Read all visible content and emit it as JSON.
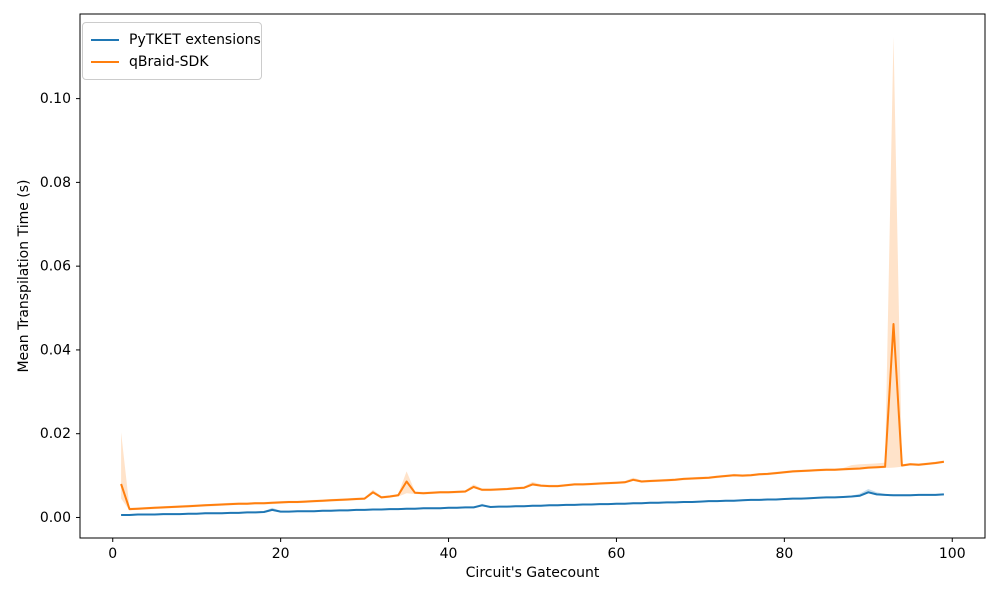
{
  "window": {
    "background": "#ffffff"
  },
  "chart_data": {
    "type": "line",
    "title": "",
    "xlabel": "Circuit's Gatecount",
    "ylabel": "Mean Transpilation Time (s)",
    "grid": false,
    "legend_position": "upper-left",
    "xlim": [
      -3.9,
      103.9
    ],
    "ylim": [
      -0.0049,
      0.1202
    ],
    "xticks": {
      "values": [
        0,
        20,
        40,
        60,
        80,
        100
      ],
      "labels": [
        "0",
        "20",
        "40",
        "60",
        "80",
        "100"
      ]
    },
    "yticks": {
      "values": [
        0,
        0.02,
        0.04,
        0.06,
        0.08,
        0.1
      ],
      "labels": [
        "0.00",
        "0.02",
        "0.04",
        "0.06",
        "0.08",
        "0.10"
      ]
    },
    "x": {
      "start": 1,
      "end": 99,
      "step": 1
    },
    "series": [
      {
        "name": "PyTKET extensions",
        "color": "#1f77b4",
        "band_opacity": 0.25,
        "band_delta": 0.0002,
        "values": [
          0.0006,
          0.0006,
          0.0007,
          0.0007,
          0.0007,
          0.0008,
          0.0008,
          0.0008,
          0.0009,
          0.0009,
          0.001,
          0.001,
          0.001,
          0.0011,
          0.0011,
          0.0012,
          0.0012,
          0.0013,
          0.0018,
          0.0014,
          0.0014,
          0.0015,
          0.0015,
          0.0015,
          0.0016,
          0.0016,
          0.0017,
          0.0017,
          0.0018,
          0.0018,
          0.0019,
          0.0019,
          0.002,
          0.002,
          0.0021,
          0.0021,
          0.0022,
          0.0022,
          0.0022,
          0.0023,
          0.0023,
          0.0024,
          0.0024,
          0.0029,
          0.0025,
          0.0026,
          0.0026,
          0.0027,
          0.0027,
          0.0028,
          0.0028,
          0.0029,
          0.0029,
          0.003,
          0.003,
          0.0031,
          0.0031,
          0.0032,
          0.0032,
          0.0033,
          0.0033,
          0.0034,
          0.0034,
          0.0035,
          0.0035,
          0.0036,
          0.0036,
          0.0037,
          0.0037,
          0.0038,
          0.0039,
          0.0039,
          0.004,
          0.004,
          0.0041,
          0.0042,
          0.0042,
          0.0043,
          0.0043,
          0.0044,
          0.0045,
          0.0045,
          0.0046,
          0.0047,
          0.0048,
          0.0048,
          0.0049,
          0.005,
          0.0052,
          0.006,
          0.0055,
          0.0054,
          0.0053,
          0.0053,
          0.0053,
          0.0054,
          0.0054,
          0.0054,
          0.0055
        ],
        "band_hi_overrides": {
          "19": 0.0023,
          "44": 0.0033,
          "89": 0.0057,
          "90": 0.0068,
          "91": 0.006
        },
        "band_lo_overrides": {}
      },
      {
        "name": "qBraid-SDK",
        "color": "#ff7f0e",
        "band_opacity": 0.22,
        "band_delta": 0.0003,
        "values": [
          0.008,
          0.002,
          0.0021,
          0.0022,
          0.0023,
          0.0024,
          0.0025,
          0.0026,
          0.0027,
          0.0028,
          0.0029,
          0.003,
          0.0031,
          0.0032,
          0.0033,
          0.0033,
          0.0034,
          0.0034,
          0.0035,
          0.0036,
          0.0037,
          0.0037,
          0.0038,
          0.0039,
          0.004,
          0.0041,
          0.0042,
          0.0043,
          0.0044,
          0.0045,
          0.006,
          0.0048,
          0.005,
          0.0053,
          0.0086,
          0.0059,
          0.0058,
          0.0059,
          0.006,
          0.006,
          0.0061,
          0.0062,
          0.0073,
          0.0066,
          0.0066,
          0.0067,
          0.0068,
          0.007,
          0.0071,
          0.0079,
          0.0076,
          0.0075,
          0.0075,
          0.0077,
          0.0079,
          0.0079,
          0.008,
          0.0081,
          0.0082,
          0.0083,
          0.0084,
          0.009,
          0.0086,
          0.0087,
          0.0088,
          0.0089,
          0.009,
          0.0092,
          0.0093,
          0.0094,
          0.0095,
          0.0097,
          0.0099,
          0.0101,
          0.01,
          0.0101,
          0.0103,
          0.0104,
          0.0106,
          0.0108,
          0.011,
          0.0111,
          0.0112,
          0.0113,
          0.0114,
          0.0114,
          0.0115,
          0.0116,
          0.0117,
          0.0119,
          0.012,
          0.0121,
          0.0462,
          0.0124,
          0.0127,
          0.0126,
          0.0128,
          0.013,
          0.0133
        ],
        "band_hi_overrides": {
          "1": 0.0203,
          "31": 0.0066,
          "35": 0.011,
          "43": 0.0079,
          "50": 0.0085,
          "62": 0.0095,
          "88": 0.0125,
          "89": 0.0127,
          "90": 0.0128,
          "91": 0.0129,
          "92": 0.0131,
          "93": 0.1148
        },
        "band_lo_overrides": {
          "1": 0.0045,
          "35": 0.0058,
          "93": 0.0119
        }
      }
    ]
  },
  "legend": {
    "items": [
      {
        "label": "PyTKET extensions",
        "color": "#1f77b4"
      },
      {
        "label": "qBraid-SDK",
        "color": "#ff7f0e"
      }
    ]
  }
}
